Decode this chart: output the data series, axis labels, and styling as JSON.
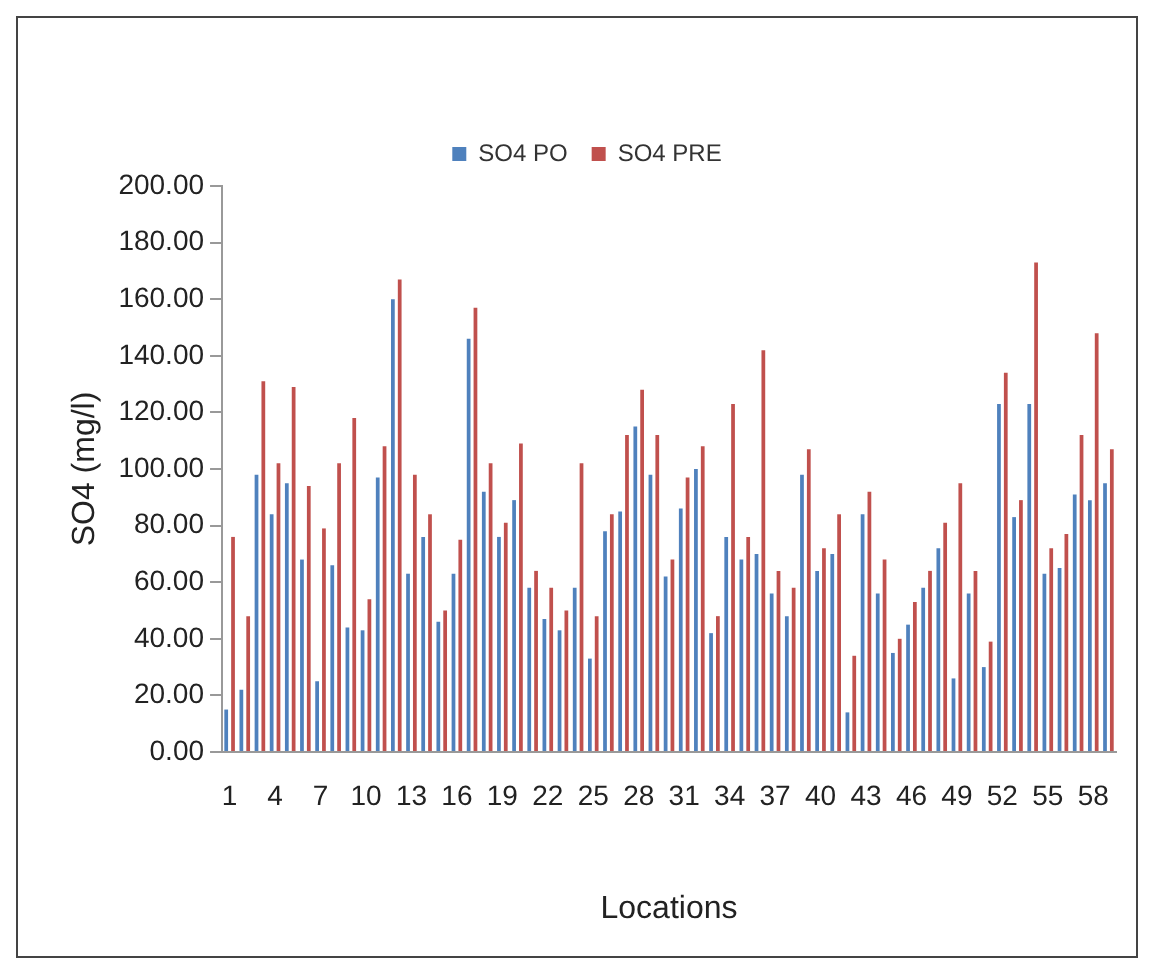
{
  "chart_data": {
    "type": "bar",
    "xlabel": "Locations",
    "ylabel": "SO4 (mg/l)",
    "categories": [
      "1",
      null,
      null,
      "4",
      null,
      null,
      "7",
      null,
      null,
      "10",
      null,
      null,
      "13",
      null,
      null,
      "16",
      null,
      null,
      "19",
      null,
      null,
      "22",
      null,
      null,
      "25",
      null,
      null,
      "28",
      null,
      null,
      "31",
      null,
      null,
      "34",
      null,
      null,
      "37",
      null,
      null,
      "40",
      null,
      null,
      "43",
      null,
      null,
      "46",
      null,
      null,
      "49",
      null,
      null,
      "52",
      null,
      null,
      "55",
      null,
      null,
      "58",
      null
    ],
    "series": [
      {
        "name": "SO4 PO",
        "color": "#4f81bd",
        "values": [
          15,
          22,
          98,
          84,
          95,
          68,
          25,
          66,
          44,
          43,
          97,
          160,
          63,
          76,
          46,
          63,
          146,
          92,
          76,
          89,
          58,
          47,
          43,
          58,
          33,
          78,
          85,
          115,
          98,
          62,
          86,
          100,
          42,
          76,
          68,
          70,
          56,
          48,
          98,
          64,
          70,
          14,
          84,
          56,
          35,
          45,
          58,
          72,
          26,
          56,
          30,
          123,
          83,
          123,
          63,
          65,
          91,
          89,
          95
        ]
      },
      {
        "name": "SO4 PRE",
        "color": "#c0504d",
        "values": [
          76,
          48,
          131,
          102,
          129,
          94,
          79,
          102,
          118,
          54,
          108,
          167,
          98,
          84,
          50,
          75,
          157,
          102,
          81,
          109,
          64,
          58,
          50,
          102,
          48,
          84,
          112,
          128,
          112,
          68,
          97,
          108,
          48,
          123,
          76,
          142,
          64,
          58,
          107,
          72,
          84,
          34,
          92,
          68,
          40,
          53,
          64,
          81,
          95,
          64,
          39,
          134,
          89,
          173,
          72,
          77,
          112,
          148,
          107
        ]
      }
    ],
    "ylim": [
      0,
      200
    ],
    "yticks": [
      {
        "value": 0,
        "label": "0.00"
      },
      {
        "value": 20,
        "label": "20.00"
      },
      {
        "value": 40,
        "label": "40.00"
      },
      {
        "value": 60,
        "label": "60.00"
      },
      {
        "value": 80,
        "label": "80.00"
      },
      {
        "value": 100,
        "label": "100.00"
      },
      {
        "value": 120,
        "label": "120.00"
      },
      {
        "value": 140,
        "label": "140.00"
      },
      {
        "value": 160,
        "label": "160.00"
      },
      {
        "value": 180,
        "label": "180.00"
      },
      {
        "value": 200,
        "label": "200.00"
      }
    ],
    "grid": false,
    "legend": "top"
  }
}
